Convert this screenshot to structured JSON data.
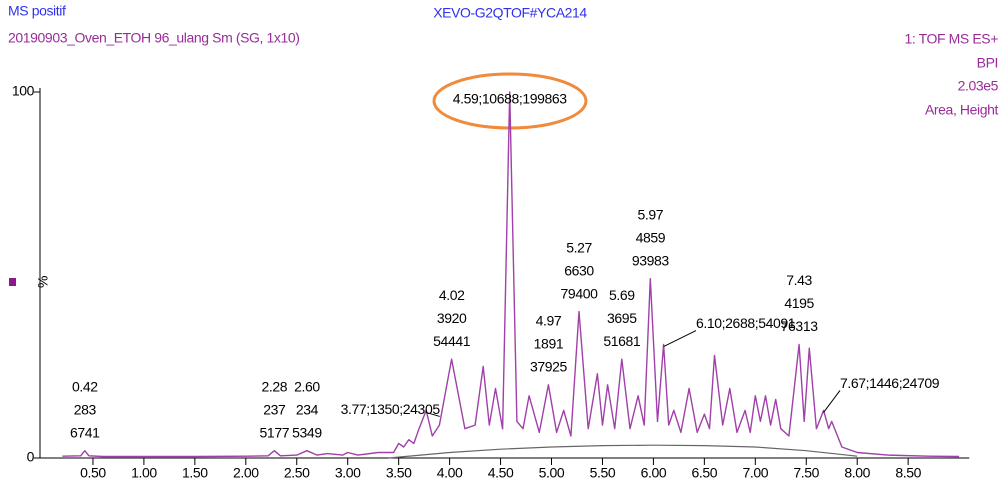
{
  "chart_data": {
    "type": "line",
    "title": "XEVO-G2QTOF#YCA214",
    "header_left": [
      "MS positif",
      "20190903_Oven_ETOH 96_ulang Sm (SG, 1x10)"
    ],
    "header_right": [
      "1: TOF MS ES+",
      "BPI",
      "2.03e5",
      "Area, Height"
    ],
    "y_label": "%",
    "xlim": [
      0,
      9.1
    ],
    "ylim": [
      0,
      100
    ],
    "xticks": [
      {
        "value": 0.5,
        "label": "0.50"
      },
      {
        "value": 1.0,
        "label": "1.00"
      },
      {
        "value": 1.5,
        "label": "1.50"
      },
      {
        "value": 2.0,
        "label": "2.00"
      },
      {
        "value": 2.5,
        "label": "2.50"
      },
      {
        "value": 3.0,
        "label": "3.00"
      },
      {
        "value": 3.5,
        "label": "3.50"
      },
      {
        "value": 4.0,
        "label": "4.00"
      },
      {
        "value": 4.5,
        "label": "4.50"
      },
      {
        "value": 5.0,
        "label": "5.00"
      },
      {
        "value": 5.5,
        "label": "5.50"
      },
      {
        "value": 6.0,
        "label": "6.00"
      },
      {
        "value": 6.5,
        "label": "6.50"
      },
      {
        "value": 7.0,
        "label": "7.00"
      },
      {
        "value": 7.5,
        "label": "7.50"
      },
      {
        "value": 8.0,
        "label": "8.00"
      },
      {
        "value": 8.5,
        "label": "8.50"
      }
    ],
    "yticks": [
      0,
      100
    ],
    "x": [
      0.2,
      0.38,
      0.42,
      0.46,
      0.6,
      1.0,
      1.5,
      2.0,
      2.22,
      2.28,
      2.34,
      2.5,
      2.6,
      2.7,
      2.8,
      2.95,
      3.0,
      3.1,
      3.3,
      3.45,
      3.5,
      3.55,
      3.6,
      3.65,
      3.7,
      3.77,
      3.83,
      3.9,
      4.02,
      4.15,
      4.25,
      4.33,
      4.39,
      4.45,
      4.52,
      4.59,
      4.66,
      4.72,
      4.78,
      4.88,
      4.97,
      5.05,
      5.12,
      5.19,
      5.27,
      5.36,
      5.45,
      5.5,
      5.55,
      5.62,
      5.69,
      5.77,
      5.85,
      5.91,
      5.97,
      6.04,
      6.1,
      6.15,
      6.2,
      6.27,
      6.35,
      6.43,
      6.5,
      6.55,
      6.6,
      6.68,
      6.75,
      6.82,
      6.9,
      6.95,
      7.0,
      7.05,
      7.1,
      7.15,
      7.2,
      7.25,
      7.33,
      7.43,
      7.48,
      7.53,
      7.6,
      7.67,
      7.72,
      7.75,
      7.85,
      8.0,
      8.3,
      8.7,
      9.0
    ],
    "series": [
      {
        "color": "#a040a8",
        "values": [
          0.5,
          0.6,
          2,
          0.6,
          0.4,
          0.4,
          0.4,
          0.5,
          0.6,
          2,
          0.6,
          0.8,
          2,
          0.8,
          1.2,
          0.8,
          1.5,
          0.8,
          1.5,
          1.5,
          4,
          3,
          5,
          4,
          8,
          13,
          6,
          9,
          27,
          8,
          9,
          25,
          9,
          19,
          8,
          100,
          10,
          8,
          17,
          7,
          20,
          7,
          13,
          6,
          40,
          8,
          23,
          9,
          20,
          8,
          27,
          8,
          17,
          9,
          49,
          10,
          31,
          9,
          13,
          7,
          19,
          7,
          12,
          8,
          28,
          9,
          19,
          7,
          13,
          7,
          17,
          10,
          17,
          9,
          16,
          8,
          6,
          31,
          10,
          30,
          8,
          13,
          8,
          10,
          3,
          1.5,
          0.8,
          0.5,
          0.4
        ]
      }
    ],
    "baseline": {
      "color": "#666666",
      "x": [
        3.4,
        4.0,
        4.5,
        5.0,
        5.5,
        6.0,
        6.5,
        7.0,
        7.5,
        8.0
      ],
      "values": [
        0,
        1.5,
        2.4,
        3,
        3.4,
        3.5,
        3.4,
        3,
        2,
        0.5
      ]
    },
    "annotations": [
      {
        "x": 0.42,
        "lines": [
          "0.42",
          "283",
          "6741"
        ]
      },
      {
        "x": 2.28,
        "lines": [
          "2.28",
          "237",
          "5177"
        ]
      },
      {
        "x": 2.6,
        "lines": [
          "2.60",
          "234",
          "5349"
        ]
      },
      {
        "x": 3.77,
        "lines": [
          "3.77;1350;24305"
        ]
      },
      {
        "x": 4.02,
        "lines": [
          "4.02",
          "3920",
          "54441"
        ]
      },
      {
        "x": 4.59,
        "lines": [
          "4.59;10688;199863"
        ]
      },
      {
        "x": 4.97,
        "lines": [
          "4.97",
          "1891",
          "37925"
        ]
      },
      {
        "x": 5.27,
        "lines": [
          "5.27",
          "6630",
          "79400"
        ]
      },
      {
        "x": 5.69,
        "lines": [
          "5.69",
          "3695",
          "51681"
        ]
      },
      {
        "x": 5.97,
        "lines": [
          "5.97",
          "4859",
          "93983"
        ]
      },
      {
        "x": 6.1,
        "lines": [
          "6.10;2688;54091"
        ]
      },
      {
        "x": 7.43,
        "lines": [
          "7.43",
          "4195",
          "76313"
        ]
      },
      {
        "x": 7.67,
        "lines": [
          "7.67;1446;24709"
        ]
      }
    ]
  }
}
